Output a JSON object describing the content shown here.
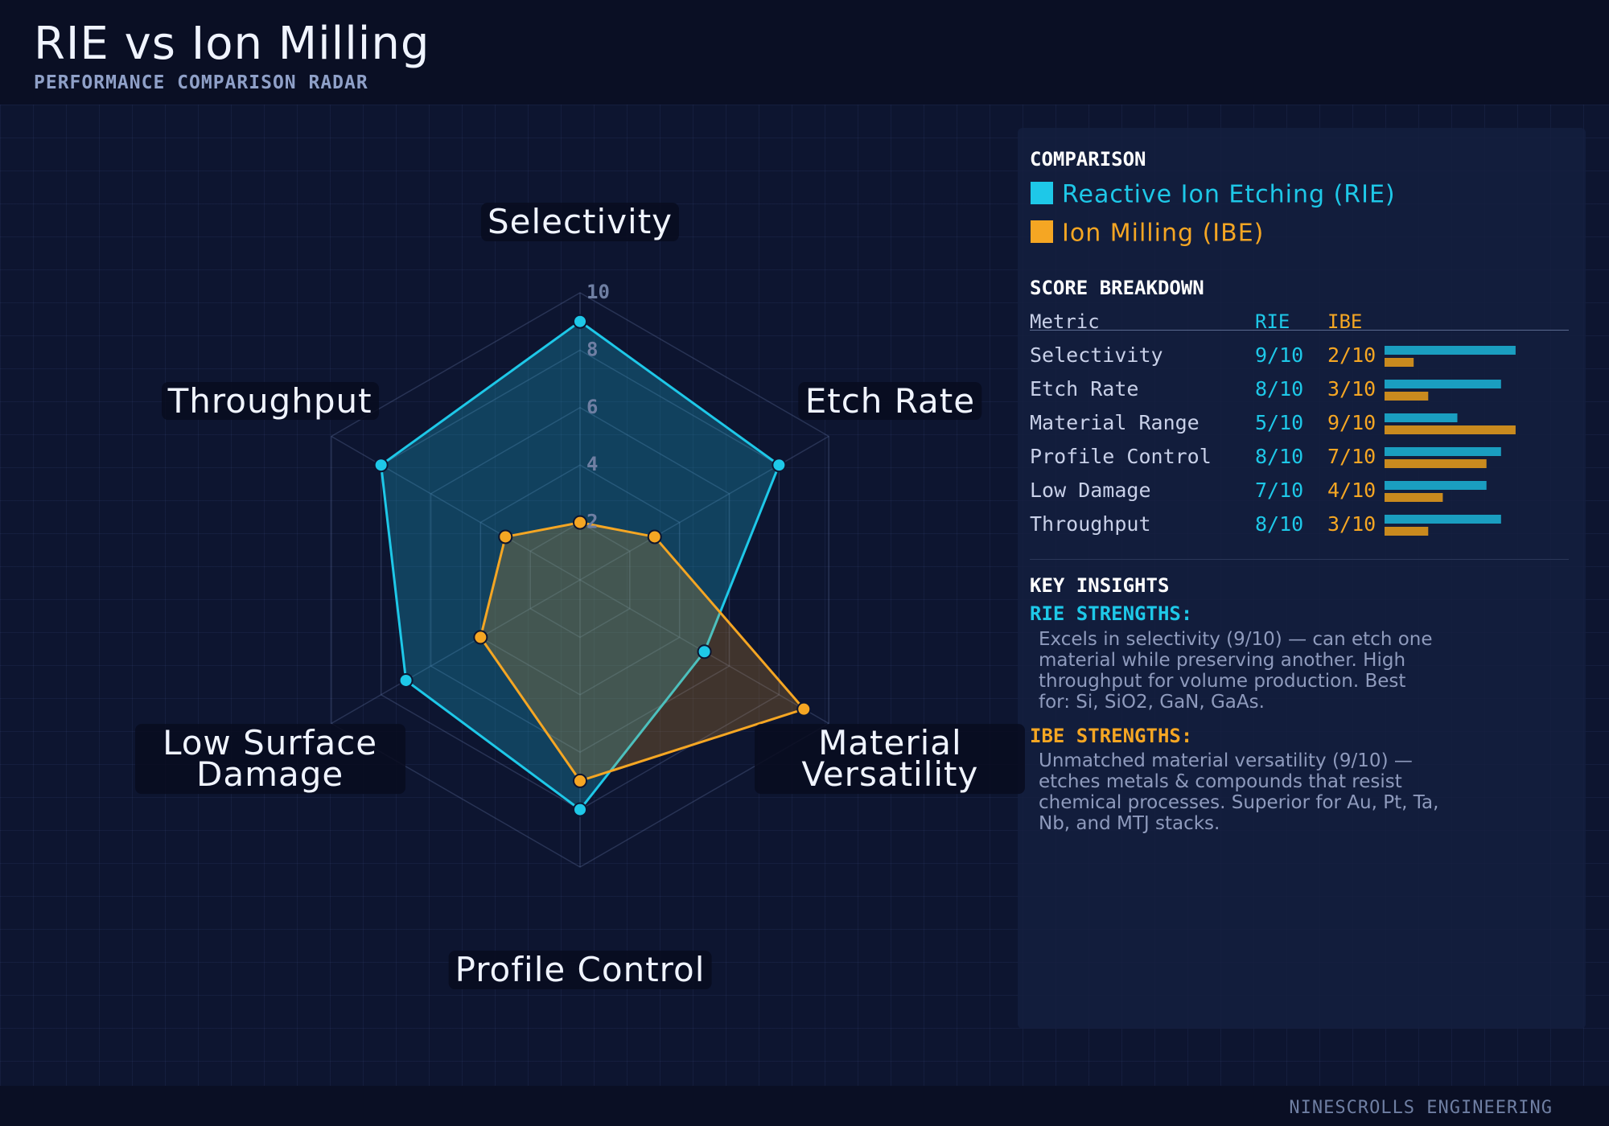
{
  "header": {
    "title": "RIE vs Ion Milling",
    "subtitle": "PERFORMANCE COMPARISON RADAR"
  },
  "chart_data": {
    "type": "radar",
    "categories": [
      "Selectivity",
      "Etch Rate",
      "Material Versatility",
      "Profile Control",
      "Low Surface Damage",
      "Throughput"
    ],
    "series": [
      {
        "name": "Reactive Ion Etching (RIE)",
        "color": "#1ec8e8",
        "values": [
          9,
          8,
          5,
          8,
          7,
          8
        ],
        "value_labels": [
          "9/10",
          "8/10",
          "5/10",
          "8/10",
          "7/10",
          "8/10"
        ]
      },
      {
        "name": "Ion Milling (IBE)",
        "color": "#f5a623",
        "values": [
          2,
          3,
          9,
          7,
          4,
          3
        ],
        "value_labels": [
          "2/10",
          "3/10",
          "9/10",
          "7/10",
          "4/10",
          "3/10"
        ]
      }
    ],
    "rlim": [
      0,
      10
    ],
    "rticks": [
      2,
      4,
      6,
      8,
      10
    ],
    "grid": true,
    "legend_title": "COMPARISON"
  },
  "score_breakdown": {
    "title": "SCORE BREAKDOWN",
    "columns": [
      "Metric",
      "RIE",
      "IBE"
    ],
    "metrics": [
      "Selectivity",
      "Etch Rate",
      "Material Range",
      "Profile Control",
      "Low Damage",
      "Throughput"
    ]
  },
  "insights": {
    "title": "KEY INSIGHTS",
    "rie_heading": "RIE STRENGTHS:",
    "rie_text": "Excels in selectivity (9/10) — can etch one material while preserving another. High throughput for volume production. Best for: Si, SiO2, GaN, GaAs.",
    "ibe_heading": "IBE STRENGTHS:",
    "ibe_text": "Unmatched material versatility (9/10) — etches metals & compounds that resist chemical processes. Superior for Au, Pt, Ta, Nb, and MTJ stacks."
  },
  "footer": "NINESCROLLS ENGINEERING"
}
